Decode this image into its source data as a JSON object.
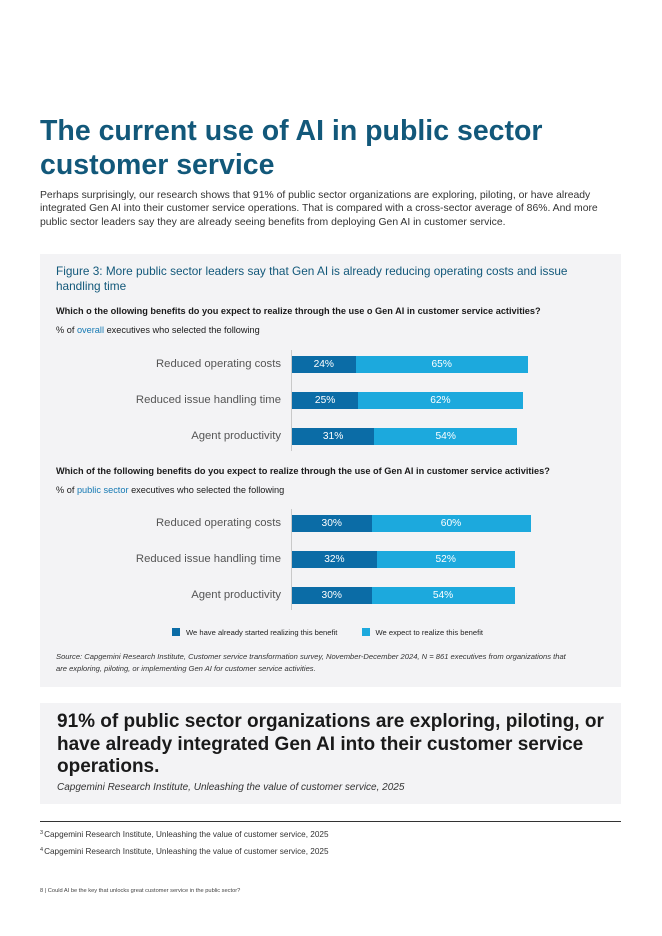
{
  "title": "The current use of AI in public sector customer service",
  "intro": "Perhaps surprisingly, our research shows that 91% of public sector organizations are exploring, piloting, or have already integrated Gen AI into their customer service operations. That is compared with a cross-sector average of 86%.  And more public sector leaders say they are already seeing benefits from deploying Gen AI in customer service.",
  "figure": {
    "title": "Figure 3: More public sector leaders say that Gen AI is already reducing operating costs and issue handling time",
    "legend": {
      "realized": "We have already started realizing this benefit",
      "expected": "We expect to realize this benefit"
    },
    "source": "Source: Capgemini Research Institute, Customer service transformation survey, November-December 2024, N = 861 executives from organizations that are exploring, piloting, or implementing Gen AI for customer service activities."
  },
  "colors": {
    "realized": "#0b6ca6",
    "expected": "#1ca9dd",
    "accent": "#12587a"
  },
  "chart_data": [
    {
      "type": "bar",
      "orientation": "horizontal",
      "stacked": true,
      "title": "Which o the ollowing benefits do you expect to realize through the use o Gen AI in customer service activities?",
      "subtitle_prefix": "% of ",
      "subtitle_highlight": "overall",
      "subtitle_suffix": " executives who selected the following",
      "categories": [
        "Reduced operating costs",
        "Reduced issue handling time",
        "Agent productivity"
      ],
      "series": [
        {
          "name": "We have already started realizing this benefit",
          "values": [
            24,
            25,
            31
          ],
          "labels": [
            "24%",
            "25%",
            "31%"
          ]
        },
        {
          "name": "We expect to realize this benefit",
          "values": [
            65,
            62,
            54
          ],
          "labels": [
            "65%",
            "62%",
            "54%"
          ]
        }
      ],
      "unit": "%"
    },
    {
      "type": "bar",
      "orientation": "horizontal",
      "stacked": true,
      "title": "Which of the following benefits do you expect to realize through the use of Gen AI in customer service activities?",
      "subtitle_prefix": "% of ",
      "subtitle_highlight": "public sector",
      "subtitle_suffix": " executives who selected the following",
      "categories": [
        "Reduced operating costs",
        "Reduced issue handling time",
        "Agent productivity"
      ],
      "series": [
        {
          "name": "We have already started realizing this benefit",
          "values": [
            30,
            32,
            30
          ],
          "labels": [
            "30%",
            "32%",
            "30%"
          ]
        },
        {
          "name": "We expect to realize this benefit",
          "values": [
            60,
            52,
            54
          ],
          "labels": [
            "60%",
            "52%",
            "54%"
          ]
        }
      ],
      "unit": "%"
    }
  ],
  "callout": {
    "text": "91% of public sector organizations are exploring, piloting, or have already integrated Gen AI into their customer service operations.",
    "source": "Capgemini Research Institute, Unleashing the value of customer service, 2025"
  },
  "footnotes": [
    {
      "num": "3",
      "text": "Capgemini Research Institute, Unleashing the value of customer service, 2025"
    },
    {
      "num": "4",
      "text": "Capgemini Research Institute, Unleashing the value of customer service, 2025"
    }
  ],
  "page_footer": "8 | Could AI be the key that unlocks great customer service in the public sector?"
}
